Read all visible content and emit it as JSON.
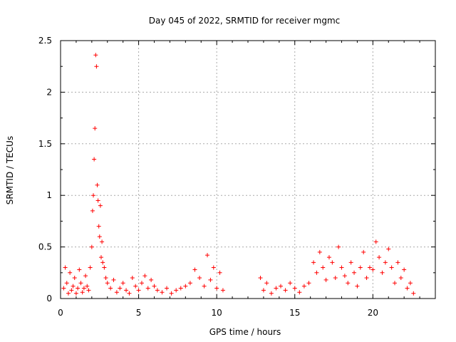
{
  "chart_data": {
    "type": "scatter",
    "title": "Day 045 of 2022, SRMTID for receiver mgmc",
    "xlabel": "GPS time / hours",
    "ylabel": "SRMTID / TECUs",
    "xlim": [
      0,
      24
    ],
    "ylim": [
      0,
      2.5
    ],
    "grid": true,
    "marker": "+",
    "color": "#ff0000",
    "x_ticks": [
      0,
      5,
      10,
      15,
      20
    ],
    "x_tick_labels": [
      "0",
      "5",
      "10",
      "15",
      "20"
    ],
    "y_ticks": [
      0,
      0.5,
      1,
      1.5,
      2,
      2.5
    ],
    "y_tick_labels": [
      "0",
      "0.5",
      "1",
      "1.5",
      "2",
      "2.5"
    ],
    "series": [
      {
        "name": "SRMTID",
        "x": [
          0.2,
          0.3,
          0.4,
          0.5,
          0.6,
          0.7,
          0.8,
          0.9,
          1.0,
          1.1,
          1.2,
          1.3,
          1.4,
          1.5,
          1.6,
          1.7,
          1.8,
          1.9,
          2.0,
          2.05,
          2.1,
          2.15,
          2.2,
          2.25,
          2.3,
          2.35,
          2.4,
          2.45,
          2.5,
          2.55,
          2.6,
          2.65,
          2.7,
          2.8,
          2.9,
          3.0,
          3.2,
          3.4,
          3.6,
          3.8,
          4.0,
          4.2,
          4.4,
          4.6,
          4.8,
          5.0,
          5.2,
          5.4,
          5.6,
          5.8,
          6.0,
          6.2,
          6.5,
          6.8,
          7.1,
          7.4,
          7.7,
          8.0,
          8.3,
          8.6,
          8.9,
          9.2,
          9.4,
          9.6,
          9.8,
          10.0,
          10.2,
          10.4,
          12.8,
          13.0,
          13.2,
          13.5,
          13.8,
          14.1,
          14.4,
          14.7,
          15.0,
          15.3,
          15.6,
          15.9,
          16.2,
          16.4,
          16.6,
          16.8,
          17.0,
          17.2,
          17.4,
          17.6,
          17.8,
          18.0,
          18.2,
          18.4,
          18.6,
          18.8,
          19.0,
          19.2,
          19.4,
          19.6,
          19.8,
          20.0,
          20.2,
          20.4,
          20.6,
          20.8,
          21.0,
          21.2,
          21.4,
          21.6,
          21.8,
          22.0,
          22.2,
          22.4,
          22.6
        ],
        "y": [
          0.1,
          0.3,
          0.15,
          0.05,
          0.25,
          0.08,
          0.12,
          0.2,
          0.05,
          0.1,
          0.28,
          0.15,
          0.06,
          0.1,
          0.22,
          0.12,
          0.08,
          0.3,
          0.5,
          0.85,
          1.0,
          1.35,
          1.65,
          2.36,
          2.25,
          1.1,
          0.95,
          0.7,
          0.6,
          0.9,
          0.4,
          0.55,
          0.35,
          0.3,
          0.2,
          0.15,
          0.1,
          0.18,
          0.06,
          0.1,
          0.15,
          0.08,
          0.05,
          0.2,
          0.12,
          0.08,
          0.15,
          0.22,
          0.1,
          0.18,
          0.12,
          0.08,
          0.06,
          0.1,
          0.05,
          0.08,
          0.1,
          0.12,
          0.15,
          0.28,
          0.2,
          0.12,
          0.42,
          0.18,
          0.3,
          0.1,
          0.25,
          0.08,
          0.2,
          0.08,
          0.15,
          0.05,
          0.1,
          0.12,
          0.08,
          0.15,
          0.1,
          0.06,
          0.12,
          0.15,
          0.35,
          0.25,
          0.45,
          0.3,
          0.18,
          0.4,
          0.35,
          0.2,
          0.5,
          0.3,
          0.22,
          0.15,
          0.35,
          0.25,
          0.12,
          0.3,
          0.45,
          0.2,
          0.3,
          0.28,
          0.55,
          0.4,
          0.25,
          0.35,
          0.48,
          0.3,
          0.15,
          0.35,
          0.2,
          0.28,
          0.1,
          0.15,
          0.05
        ]
      }
    ]
  }
}
